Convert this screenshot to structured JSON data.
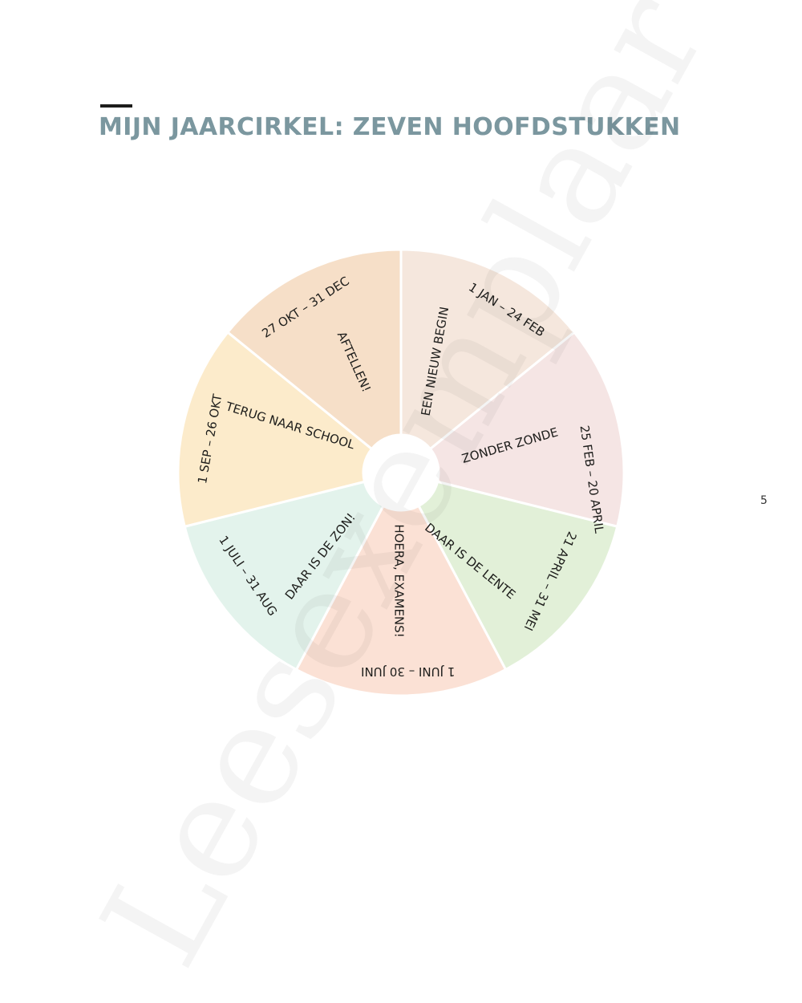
{
  "page": {
    "title": "MIJN JAARCIRKEL: ZEVEN HOOFDSTUKKEN",
    "page_number": "5",
    "watermark": "Leesexemplaar"
  },
  "wheel": {
    "segments": [
      {
        "chapter": "EEN NIEUW BEGIN",
        "dates": "1 JAN – 24 FEB",
        "color": "#f5e7dd"
      },
      {
        "chapter": "ZONDER ZONDE",
        "dates": "25 FEB – 20 APRIL",
        "color": "#f5e5e4"
      },
      {
        "chapter": "DAAR IS DE LENTE",
        "dates": "21 APRIL – 31 MEI",
        "color": "#e2f0d8"
      },
      {
        "chapter": "HOERA, EXAMENS!",
        "dates": "1 JUNI – 30 JUNI",
        "color": "#fbe1d5"
      },
      {
        "chapter": "DAAR IS DE ZON!",
        "dates": "1 JULI – 31 AUG",
        "color": "#e3f3ec"
      },
      {
        "chapter": "TERUG NAAR SCHOOL",
        "dates": "1 SEP – 26 OKT",
        "color": "#fcebcb"
      },
      {
        "chapter": "AFTELLEN!",
        "dates": "27 OKT – 31 DEC",
        "color": "#f6dfc8"
      }
    ],
    "gap_color": "#ffffff"
  }
}
